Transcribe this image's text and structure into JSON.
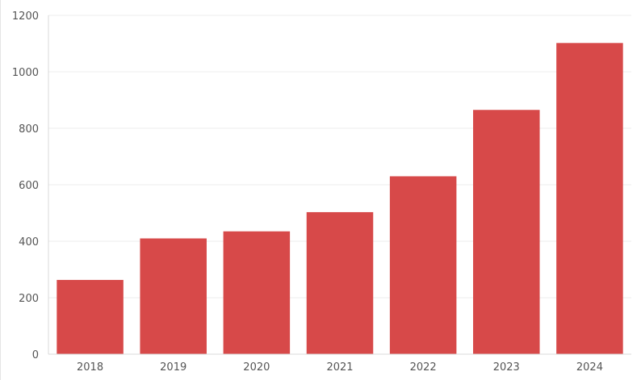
{
  "chart_data": {
    "type": "bar",
    "title": "",
    "xlabel": "",
    "ylabel": "",
    "categories": [
      "2018",
      "2019",
      "2020",
      "2021",
      "2022",
      "2023",
      "2024"
    ],
    "values": [
      263,
      410,
      435,
      503,
      630,
      865,
      1102
    ],
    "ylim": [
      0,
      1200
    ],
    "yticks": [
      "0",
      "200",
      "400",
      "600",
      "800",
      "1000",
      "1200"
    ],
    "grid": true,
    "legend": "none",
    "bar_color": "#d64545"
  }
}
